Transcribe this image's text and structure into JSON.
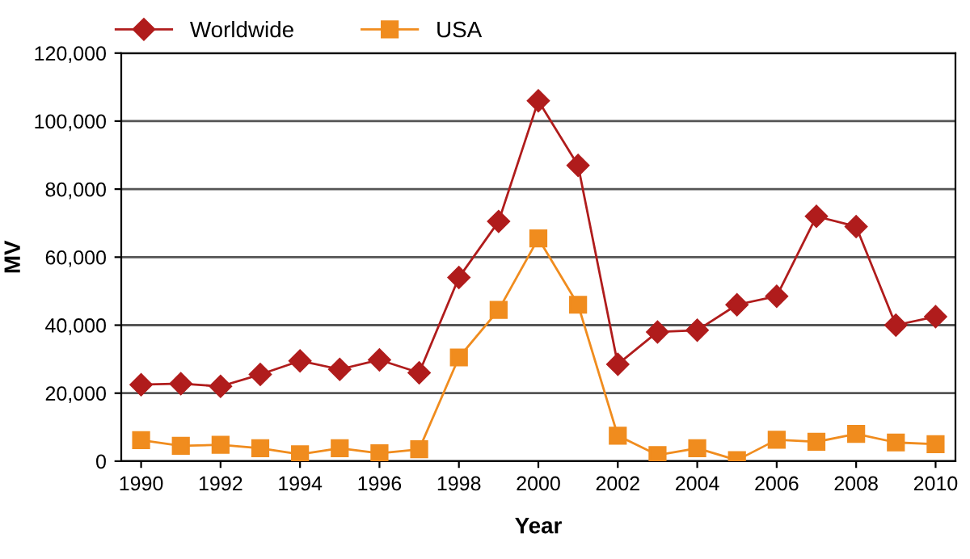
{
  "chart_data": {
    "type": "line",
    "xlabel": "Year",
    "ylabel": "MV",
    "x": [
      1990,
      1991,
      1992,
      1993,
      1994,
      1995,
      1996,
      1997,
      1998,
      1999,
      2000,
      2001,
      2002,
      2003,
      2004,
      2005,
      2006,
      2007,
      2008,
      2009,
      2010
    ],
    "series": [
      {
        "name": "Worldwide",
        "color": "#b01c1c",
        "marker": "diamond",
        "values": [
          22500,
          22800,
          22000,
          25500,
          29500,
          27000,
          29800,
          26000,
          54000,
          70500,
          106000,
          87000,
          28500,
          38000,
          38500,
          46000,
          48500,
          72000,
          69000,
          40000,
          42500
        ]
      },
      {
        "name": "USA",
        "color": "#f08c1e",
        "marker": "square",
        "values": [
          6200,
          4500,
          4800,
          3800,
          2000,
          3800,
          2300,
          3500,
          30500,
          44500,
          65500,
          46000,
          7500,
          1800,
          3800,
          300,
          6300,
          5700,
          8000,
          5500,
          5000
        ]
      }
    ],
    "xlim": [
      1989.5,
      2010.5
    ],
    "xticks": [
      1990,
      1992,
      1994,
      1996,
      1998,
      2000,
      2002,
      2004,
      2006,
      2008,
      2010
    ],
    "ylim": [
      0,
      120000
    ],
    "yticks": [
      {
        "value": 0,
        "label": "0"
      },
      {
        "value": 20000,
        "label": "20,000"
      },
      {
        "value": 40000,
        "label": "40,000"
      },
      {
        "value": 60000,
        "label": "60,000"
      },
      {
        "value": 80000,
        "label": "80,000"
      },
      {
        "value": 100000,
        "label": "100,000"
      },
      {
        "value": 120000,
        "label": "120,000"
      }
    ],
    "grid": "y",
    "legend": "top left",
    "line_style": "solid"
  }
}
